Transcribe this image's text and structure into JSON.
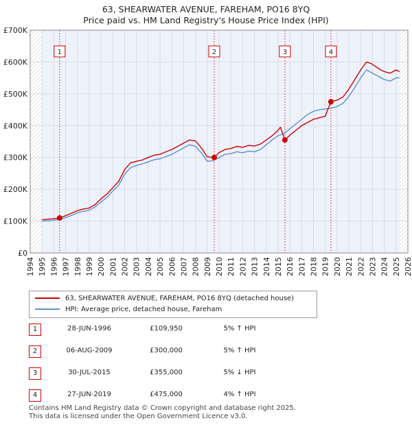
{
  "title_line1": "63, SHEARWATER AVENUE, FAREHAM, PO16 8YQ",
  "title_line2": "Price paid vs. HM Land Registry's House Price Index (HPI)",
  "chart_data": {
    "type": "line",
    "title": "63, SHEARWATER AVENUE, FAREHAM, PO16 8YQ — Price paid vs. HM Land Registry's House Price Index (HPI)",
    "xlabel": "",
    "ylabel": "",
    "xlim": [
      1994,
      2026
    ],
    "ylim": [
      0,
      700000
    ],
    "y_ticks": [
      {
        "value": 0,
        "label": "£0"
      },
      {
        "value": 100000,
        "label": "£100K"
      },
      {
        "value": 200000,
        "label": "£200K"
      },
      {
        "value": 300000,
        "label": "£300K"
      },
      {
        "value": 400000,
        "label": "£400K"
      },
      {
        "value": 500000,
        "label": "£500K"
      },
      {
        "value": 600000,
        "label": "£600K"
      },
      {
        "value": 700000,
        "label": "£700K"
      }
    ],
    "x_ticks": [
      "1994",
      "1995",
      "1996",
      "1997",
      "1998",
      "1999",
      "2000",
      "2001",
      "2002",
      "2003",
      "2004",
      "2005",
      "2006",
      "2007",
      "2008",
      "2009",
      "2010",
      "2011",
      "2012",
      "2013",
      "2014",
      "2015",
      "2016",
      "2017",
      "2018",
      "2019",
      "2020",
      "2021",
      "2022",
      "2023",
      "2024",
      "2025",
      "2026"
    ],
    "grid": true,
    "data_range": [
      1995.0,
      2025.3
    ],
    "series": [
      {
        "name": "63, SHEARWATER AVENUE, FAREHAM, PO16 8YQ (detached house)",
        "color": "#cc0000",
        "x": [
          1995.0,
          1995.5,
          1996.0,
          1996.49,
          1997.0,
          1997.5,
          1998.0,
          1998.5,
          1999.0,
          1999.5,
          2000.0,
          2000.5,
          2001.0,
          2001.5,
          2002.0,
          2002.5,
          2003.0,
          2003.5,
          2004.0,
          2004.5,
          2005.0,
          2005.5,
          2006.0,
          2006.5,
          2007.0,
          2007.5,
          2008.0,
          2008.5,
          2009.0,
          2009.59,
          2010.0,
          2010.5,
          2011.0,
          2011.5,
          2012.0,
          2012.5,
          2013.0,
          2013.5,
          2014.0,
          2014.5,
          2015.0,
          2015.2,
          2015.58,
          2016.0,
          2016.5,
          2017.0,
          2017.5,
          2018.0,
          2018.5,
          2019.0,
          2019.1,
          2019.48,
          2020.0,
          2020.5,
          2021.0,
          2021.5,
          2022.0,
          2022.5,
          2022.9,
          2023.3,
          2023.7,
          2024.0,
          2024.5,
          2025.0,
          2025.3
        ],
        "values": [
          104000,
          106000,
          108000,
          109950,
          117000,
          125000,
          133000,
          138000,
          141000,
          152000,
          170000,
          185000,
          205000,
          225000,
          262000,
          283000,
          288000,
          292000,
          300000,
          307000,
          310000,
          318000,
          325000,
          335000,
          345000,
          355000,
          352000,
          330000,
          302000,
          300000,
          315000,
          325000,
          328000,
          335000,
          332000,
          338000,
          336000,
          342000,
          355000,
          368000,
          385000,
          395000,
          355000,
          370000,
          385000,
          400000,
          410000,
          420000,
          425000,
          430000,
          440000,
          475000,
          480000,
          490000,
          515000,
          545000,
          575000,
          600000,
          595000,
          585000,
          575000,
          570000,
          565000,
          575000,
          570000
        ]
      },
      {
        "name": "HPI: Average price, detached house, Fareham",
        "color": "#5b8fd0",
        "x": [
          1995.0,
          1995.5,
          1996.0,
          1996.5,
          1997.0,
          1997.5,
          1998.0,
          1998.5,
          1999.0,
          1999.5,
          2000.0,
          2000.5,
          2001.0,
          2001.5,
          2002.0,
          2002.5,
          2003.0,
          2003.5,
          2004.0,
          2004.5,
          2005.0,
          2005.5,
          2006.0,
          2006.5,
          2007.0,
          2007.5,
          2008.0,
          2008.5,
          2009.0,
          2009.5,
          2010.0,
          2010.5,
          2011.0,
          2011.5,
          2012.0,
          2012.5,
          2013.0,
          2013.5,
          2014.0,
          2014.5,
          2015.0,
          2015.5,
          2016.0,
          2016.5,
          2017.0,
          2017.5,
          2018.0,
          2018.5,
          2019.0,
          2019.5,
          2020.0,
          2020.5,
          2021.0,
          2021.5,
          2022.0,
          2022.5,
          2023.0,
          2023.5,
          2024.0,
          2024.5,
          2025.0,
          2025.3
        ],
        "values": [
          100000,
          101000,
          103000,
          105000,
          111000,
          118000,
          126000,
          131000,
          134000,
          145000,
          160000,
          175000,
          195000,
          213000,
          248000,
          268000,
          275000,
          280000,
          286000,
          293000,
          296000,
          303000,
          310000,
          320000,
          330000,
          340000,
          335000,
          315000,
          288000,
          290000,
          300000,
          310000,
          312000,
          318000,
          315000,
          320000,
          318000,
          325000,
          340000,
          355000,
          368000,
          375000,
          390000,
          405000,
          420000,
          435000,
          445000,
          450000,
          452000,
          455000,
          460000,
          470000,
          492000,
          520000,
          550000,
          575000,
          565000,
          555000,
          545000,
          540000,
          550000,
          550000
        ]
      }
    ],
    "annotations": [
      {
        "label": "1",
        "x": 1996.49,
        "value": 109950
      },
      {
        "label": "2",
        "x": 2009.59,
        "value": 300000
      },
      {
        "label": "3",
        "x": 2015.58,
        "value": 355000
      },
      {
        "label": "4",
        "x": 2019.48,
        "value": 475000
      }
    ]
  },
  "legend": {
    "items": [
      {
        "label": "63, SHEARWATER AVENUE, FAREHAM, PO16 8YQ (detached house)",
        "color": "#cc0000"
      },
      {
        "label": "HPI: Average price, detached house, Fareham",
        "color": "#5b8fd0"
      }
    ]
  },
  "sales": [
    {
      "num": "1",
      "date": "28-JUN-1996",
      "price": "£109,950",
      "hpi": "5% ↑ HPI"
    },
    {
      "num": "2",
      "date": "06-AUG-2009",
      "price": "£300,000",
      "hpi": "5% ↑ HPI"
    },
    {
      "num": "3",
      "date": "30-JUL-2015",
      "price": "£355,000",
      "hpi": "5% ↓ HPI"
    },
    {
      "num": "4",
      "date": "27-JUN-2019",
      "price": "£475,000",
      "hpi": "4% ↑ HPI"
    }
  ],
  "footer": {
    "line1": "Contains HM Land Registry data © Crown copyright and database right 2025.",
    "line2": "This data is licensed under the Open Government Licence v3.0."
  },
  "colors": {
    "price_line": "#cc0000",
    "hpi_line": "#5b8fd0",
    "plot_bg": "#eef2fb",
    "hatch": "#bbbbbb"
  }
}
